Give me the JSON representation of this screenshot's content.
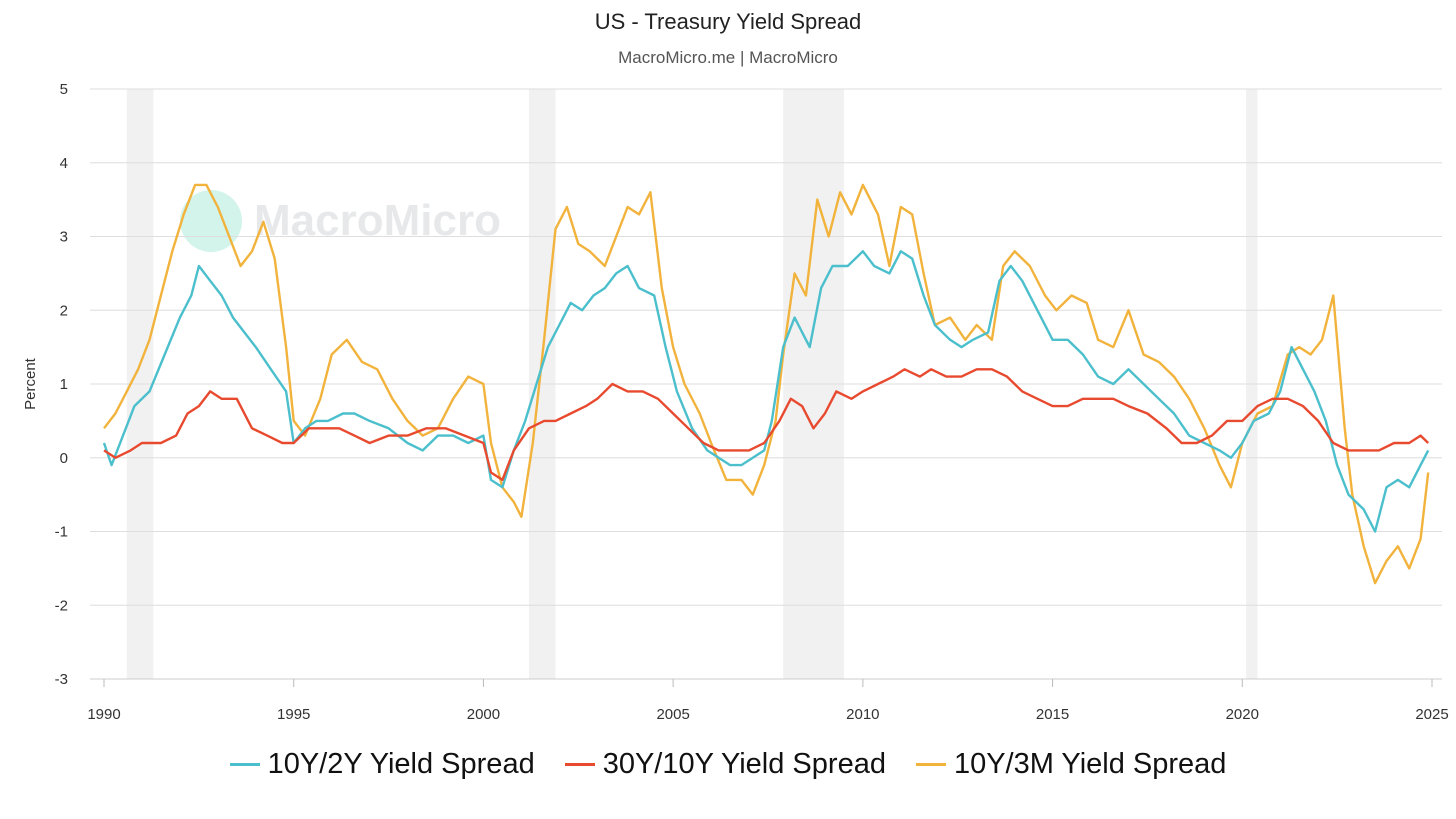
{
  "title": "US - Treasury Yield Spread",
  "subtitle": "MacroMicro.me | MacroMicro",
  "watermark": "MacroMicro",
  "chart_data": {
    "type": "line",
    "ylabel": "Percent",
    "xlim": [
      1990,
      2025
    ],
    "ylim": [
      -3,
      5
    ],
    "x_ticks": [
      1990,
      1995,
      2000,
      2005,
      2010,
      2015,
      2020,
      2025
    ],
    "y_ticks": [
      5,
      4,
      3,
      2,
      1,
      0,
      -1,
      -2,
      -3
    ],
    "grid": true,
    "legend_position": "bottom",
    "recessions": [
      [
        1990.6,
        1991.3
      ],
      [
        2001.2,
        2001.9
      ],
      [
        2007.9,
        2009.5
      ],
      [
        2020.1,
        2020.4
      ]
    ],
    "series": [
      {
        "name": "10Y/2Y Yield Spread",
        "color": "#4bbfcc",
        "points": [
          [
            1990.0,
            0.2
          ],
          [
            1990.2,
            -0.1
          ],
          [
            1990.5,
            0.3
          ],
          [
            1990.8,
            0.7
          ],
          [
            1991.2,
            0.9
          ],
          [
            1991.6,
            1.4
          ],
          [
            1992.0,
            1.9
          ],
          [
            1992.3,
            2.2
          ],
          [
            1992.5,
            2.6
          ],
          [
            1992.8,
            2.4
          ],
          [
            1993.1,
            2.2
          ],
          [
            1993.4,
            1.9
          ],
          [
            1993.7,
            1.7
          ],
          [
            1994.0,
            1.5
          ],
          [
            1994.4,
            1.2
          ],
          [
            1994.8,
            0.9
          ],
          [
            1995.0,
            0.2
          ],
          [
            1995.3,
            0.4
          ],
          [
            1995.6,
            0.5
          ],
          [
            1995.9,
            0.5
          ],
          [
            1996.3,
            0.6
          ],
          [
            1996.6,
            0.6
          ],
          [
            1997.0,
            0.5
          ],
          [
            1997.5,
            0.4
          ],
          [
            1998.0,
            0.2
          ],
          [
            1998.4,
            0.1
          ],
          [
            1998.8,
            0.3
          ],
          [
            1999.2,
            0.3
          ],
          [
            1999.6,
            0.2
          ],
          [
            2000.0,
            0.3
          ],
          [
            2000.2,
            -0.3
          ],
          [
            2000.5,
            -0.4
          ],
          [
            2000.8,
            0.1
          ],
          [
            2001.1,
            0.5
          ],
          [
            2001.4,
            1.0
          ],
          [
            2001.7,
            1.5
          ],
          [
            2002.0,
            1.8
          ],
          [
            2002.3,
            2.1
          ],
          [
            2002.6,
            2.0
          ],
          [
            2002.9,
            2.2
          ],
          [
            2003.2,
            2.3
          ],
          [
            2003.5,
            2.5
          ],
          [
            2003.8,
            2.6
          ],
          [
            2004.1,
            2.3
          ],
          [
            2004.5,
            2.2
          ],
          [
            2004.8,
            1.5
          ],
          [
            2005.1,
            0.9
          ],
          [
            2005.5,
            0.4
          ],
          [
            2005.9,
            0.1
          ],
          [
            2006.2,
            0.0
          ],
          [
            2006.5,
            -0.1
          ],
          [
            2006.8,
            -0.1
          ],
          [
            2007.1,
            0.0
          ],
          [
            2007.4,
            0.1
          ],
          [
            2007.6,
            0.5
          ],
          [
            2007.9,
            1.5
          ],
          [
            2008.2,
            1.9
          ],
          [
            2008.6,
            1.5
          ],
          [
            2008.9,
            2.3
          ],
          [
            2009.2,
            2.6
          ],
          [
            2009.6,
            2.6
          ],
          [
            2010.0,
            2.8
          ],
          [
            2010.3,
            2.6
          ],
          [
            2010.7,
            2.5
          ],
          [
            2011.0,
            2.8
          ],
          [
            2011.3,
            2.7
          ],
          [
            2011.6,
            2.2
          ],
          [
            2011.9,
            1.8
          ],
          [
            2012.3,
            1.6
          ],
          [
            2012.6,
            1.5
          ],
          [
            2012.9,
            1.6
          ],
          [
            2013.3,
            1.7
          ],
          [
            2013.6,
            2.4
          ],
          [
            2013.9,
            2.6
          ],
          [
            2014.2,
            2.4
          ],
          [
            2014.6,
            2.0
          ],
          [
            2015.0,
            1.6
          ],
          [
            2015.4,
            1.6
          ],
          [
            2015.8,
            1.4
          ],
          [
            2016.2,
            1.1
          ],
          [
            2016.6,
            1.0
          ],
          [
            2017.0,
            1.2
          ],
          [
            2017.4,
            1.0
          ],
          [
            2017.8,
            0.8
          ],
          [
            2018.2,
            0.6
          ],
          [
            2018.6,
            0.3
          ],
          [
            2019.0,
            0.2
          ],
          [
            2019.4,
            0.1
          ],
          [
            2019.7,
            0.0
          ],
          [
            2020.0,
            0.2
          ],
          [
            2020.3,
            0.5
          ],
          [
            2020.7,
            0.6
          ],
          [
            2021.0,
            0.9
          ],
          [
            2021.3,
            1.5
          ],
          [
            2021.6,
            1.2
          ],
          [
            2021.9,
            0.9
          ],
          [
            2022.2,
            0.5
          ],
          [
            2022.5,
            -0.1
          ],
          [
            2022.8,
            -0.5
          ],
          [
            2023.2,
            -0.7
          ],
          [
            2023.5,
            -1.0
          ],
          [
            2023.8,
            -0.4
          ],
          [
            2024.1,
            -0.3
          ],
          [
            2024.4,
            -0.4
          ],
          [
            2024.7,
            -0.1
          ],
          [
            2024.9,
            0.1
          ]
        ]
      },
      {
        "name": "30Y/10Y Yield Spread",
        "color": "#e84a2f",
        "points": [
          [
            1990.0,
            0.1
          ],
          [
            1990.3,
            0.0
          ],
          [
            1990.7,
            0.1
          ],
          [
            1991.0,
            0.2
          ],
          [
            1991.5,
            0.2
          ],
          [
            1991.9,
            0.3
          ],
          [
            1992.2,
            0.6
          ],
          [
            1992.5,
            0.7
          ],
          [
            1992.8,
            0.9
          ],
          [
            1993.1,
            0.8
          ],
          [
            1993.5,
            0.8
          ],
          [
            1993.9,
            0.4
          ],
          [
            1994.3,
            0.3
          ],
          [
            1994.7,
            0.2
          ],
          [
            1995.0,
            0.2
          ],
          [
            1995.4,
            0.4
          ],
          [
            1995.8,
            0.4
          ],
          [
            1996.2,
            0.4
          ],
          [
            1996.6,
            0.3
          ],
          [
            1997.0,
            0.2
          ],
          [
            1997.5,
            0.3
          ],
          [
            1998.0,
            0.3
          ],
          [
            1998.5,
            0.4
          ],
          [
            1999.0,
            0.4
          ],
          [
            1999.5,
            0.3
          ],
          [
            2000.0,
            0.2
          ],
          [
            2000.2,
            -0.2
          ],
          [
            2000.5,
            -0.3
          ],
          [
            2000.8,
            0.1
          ],
          [
            2001.2,
            0.4
          ],
          [
            2001.6,
            0.5
          ],
          [
            2001.9,
            0.5
          ],
          [
            2002.3,
            0.6
          ],
          [
            2002.7,
            0.7
          ],
          [
            2003.0,
            0.8
          ],
          [
            2003.4,
            1.0
          ],
          [
            2003.8,
            0.9
          ],
          [
            2004.2,
            0.9
          ],
          [
            2004.6,
            0.8
          ],
          [
            2005.0,
            0.6
          ],
          [
            2005.4,
            0.4
          ],
          [
            2005.8,
            0.2
          ],
          [
            2006.2,
            0.1
          ],
          [
            2006.6,
            0.1
          ],
          [
            2007.0,
            0.1
          ],
          [
            2007.4,
            0.2
          ],
          [
            2007.8,
            0.5
          ],
          [
            2008.1,
            0.8
          ],
          [
            2008.4,
            0.7
          ],
          [
            2008.7,
            0.4
          ],
          [
            2009.0,
            0.6
          ],
          [
            2009.3,
            0.9
          ],
          [
            2009.7,
            0.8
          ],
          [
            2010.0,
            0.9
          ],
          [
            2010.4,
            1.0
          ],
          [
            2010.8,
            1.1
          ],
          [
            2011.1,
            1.2
          ],
          [
            2011.5,
            1.1
          ],
          [
            2011.8,
            1.2
          ],
          [
            2012.2,
            1.1
          ],
          [
            2012.6,
            1.1
          ],
          [
            2013.0,
            1.2
          ],
          [
            2013.4,
            1.2
          ],
          [
            2013.8,
            1.1
          ],
          [
            2014.2,
            0.9
          ],
          [
            2014.6,
            0.8
          ],
          [
            2015.0,
            0.7
          ],
          [
            2015.4,
            0.7
          ],
          [
            2015.8,
            0.8
          ],
          [
            2016.2,
            0.8
          ],
          [
            2016.6,
            0.8
          ],
          [
            2017.0,
            0.7
          ],
          [
            2017.5,
            0.6
          ],
          [
            2018.0,
            0.4
          ],
          [
            2018.4,
            0.2
          ],
          [
            2018.8,
            0.2
          ],
          [
            2019.2,
            0.3
          ],
          [
            2019.6,
            0.5
          ],
          [
            2020.0,
            0.5
          ],
          [
            2020.4,
            0.7
          ],
          [
            2020.8,
            0.8
          ],
          [
            2021.2,
            0.8
          ],
          [
            2021.6,
            0.7
          ],
          [
            2022.0,
            0.5
          ],
          [
            2022.4,
            0.2
          ],
          [
            2022.8,
            0.1
          ],
          [
            2023.2,
            0.1
          ],
          [
            2023.6,
            0.1
          ],
          [
            2024.0,
            0.2
          ],
          [
            2024.4,
            0.2
          ],
          [
            2024.7,
            0.3
          ],
          [
            2024.9,
            0.2
          ]
        ]
      },
      {
        "name": "10Y/3M Yield Spread",
        "color": "#f2b33d",
        "points": [
          [
            1990.0,
            0.4
          ],
          [
            1990.3,
            0.6
          ],
          [
            1990.6,
            0.9
          ],
          [
            1990.9,
            1.2
          ],
          [
            1991.2,
            1.6
          ],
          [
            1991.5,
            2.2
          ],
          [
            1991.8,
            2.8
          ],
          [
            1992.1,
            3.3
          ],
          [
            1992.4,
            3.7
          ],
          [
            1992.7,
            3.7
          ],
          [
            1993.0,
            3.4
          ],
          [
            1993.3,
            3.0
          ],
          [
            1993.6,
            2.6
          ],
          [
            1993.9,
            2.8
          ],
          [
            1994.2,
            3.2
          ],
          [
            1994.5,
            2.7
          ],
          [
            1994.8,
            1.5
          ],
          [
            1995.0,
            0.5
          ],
          [
            1995.3,
            0.3
          ],
          [
            1995.7,
            0.8
          ],
          [
            1996.0,
            1.4
          ],
          [
            1996.4,
            1.6
          ],
          [
            1996.8,
            1.3
          ],
          [
            1997.2,
            1.2
          ],
          [
            1997.6,
            0.8
          ],
          [
            1998.0,
            0.5
          ],
          [
            1998.4,
            0.3
          ],
          [
            1998.8,
            0.4
          ],
          [
            1999.2,
            0.8
          ],
          [
            1999.6,
            1.1
          ],
          [
            2000.0,
            1.0
          ],
          [
            2000.2,
            0.2
          ],
          [
            2000.5,
            -0.4
          ],
          [
            2000.8,
            -0.6
          ],
          [
            2001.0,
            -0.8
          ],
          [
            2001.3,
            0.2
          ],
          [
            2001.6,
            1.6
          ],
          [
            2001.9,
            3.1
          ],
          [
            2002.2,
            3.4
          ],
          [
            2002.5,
            2.9
          ],
          [
            2002.8,
            2.8
          ],
          [
            2003.2,
            2.6
          ],
          [
            2003.5,
            3.0
          ],
          [
            2003.8,
            3.4
          ],
          [
            2004.1,
            3.3
          ],
          [
            2004.4,
            3.6
          ],
          [
            2004.7,
            2.3
          ],
          [
            2005.0,
            1.5
          ],
          [
            2005.3,
            1.0
          ],
          [
            2005.7,
            0.6
          ],
          [
            2006.0,
            0.2
          ],
          [
            2006.4,
            -0.3
          ],
          [
            2006.8,
            -0.3
          ],
          [
            2007.1,
            -0.5
          ],
          [
            2007.4,
            -0.1
          ],
          [
            2007.7,
            0.5
          ],
          [
            2007.9,
            1.4
          ],
          [
            2008.2,
            2.5
          ],
          [
            2008.5,
            2.2
          ],
          [
            2008.8,
            3.5
          ],
          [
            2009.1,
            3.0
          ],
          [
            2009.4,
            3.6
          ],
          [
            2009.7,
            3.3
          ],
          [
            2010.0,
            3.7
          ],
          [
            2010.4,
            3.3
          ],
          [
            2010.7,
            2.6
          ],
          [
            2011.0,
            3.4
          ],
          [
            2011.3,
            3.3
          ],
          [
            2011.6,
            2.5
          ],
          [
            2011.9,
            1.8
          ],
          [
            2012.3,
            1.9
          ],
          [
            2012.7,
            1.6
          ],
          [
            2013.0,
            1.8
          ],
          [
            2013.4,
            1.6
          ],
          [
            2013.7,
            2.6
          ],
          [
            2014.0,
            2.8
          ],
          [
            2014.4,
            2.6
          ],
          [
            2014.8,
            2.2
          ],
          [
            2015.1,
            2.0
          ],
          [
            2015.5,
            2.2
          ],
          [
            2015.9,
            2.1
          ],
          [
            2016.2,
            1.6
          ],
          [
            2016.6,
            1.5
          ],
          [
            2017.0,
            2.0
          ],
          [
            2017.4,
            1.4
          ],
          [
            2017.8,
            1.3
          ],
          [
            2018.2,
            1.1
          ],
          [
            2018.6,
            0.8
          ],
          [
            2019.0,
            0.4
          ],
          [
            2019.4,
            -0.1
          ],
          [
            2019.7,
            -0.4
          ],
          [
            2020.0,
            0.2
          ],
          [
            2020.4,
            0.6
          ],
          [
            2020.8,
            0.7
          ],
          [
            2021.2,
            1.4
          ],
          [
            2021.5,
            1.5
          ],
          [
            2021.8,
            1.4
          ],
          [
            2022.1,
            1.6
          ],
          [
            2022.4,
            2.2
          ],
          [
            2022.7,
            0.4
          ],
          [
            2022.9,
            -0.5
          ],
          [
            2023.2,
            -1.2
          ],
          [
            2023.5,
            -1.7
          ],
          [
            2023.8,
            -1.4
          ],
          [
            2024.1,
            -1.2
          ],
          [
            2024.4,
            -1.5
          ],
          [
            2024.7,
            -1.1
          ],
          [
            2024.9,
            -0.2
          ]
        ]
      }
    ]
  }
}
